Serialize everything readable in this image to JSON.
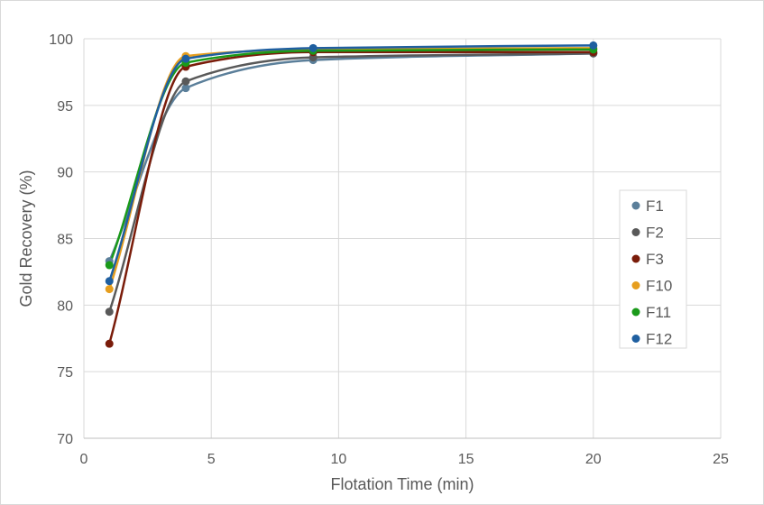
{
  "chart_data": {
    "type": "scatter",
    "title": "",
    "xlabel": "Flotation Time (min)",
    "ylabel": "Gold Recovery (%)",
    "xlim": [
      0,
      25
    ],
    "ylim": [
      70,
      100
    ],
    "xticks": [
      0,
      5,
      10,
      15,
      20,
      25
    ],
    "yticks": [
      70,
      75,
      80,
      85,
      90,
      95,
      100
    ],
    "grid": true,
    "smooth_lines": true,
    "markers": true,
    "legend_position": "right",
    "series": [
      {
        "name": "F1",
        "color": "#5b7f9a",
        "x": [
          1,
          4,
          9,
          20
        ],
        "y": [
          83.3,
          96.3,
          98.4,
          98.9
        ]
      },
      {
        "name": "F2",
        "color": "#595959",
        "x": [
          1,
          4,
          9,
          20
        ],
        "y": [
          79.5,
          96.8,
          98.6,
          98.9
        ]
      },
      {
        "name": "F3",
        "color": "#7a1c0a",
        "x": [
          1,
          4,
          9,
          20
        ],
        "y": [
          77.1,
          97.9,
          99.0,
          99.0
        ]
      },
      {
        "name": "F10",
        "color": "#e69e1e",
        "x": [
          1,
          4,
          9,
          20
        ],
        "y": [
          81.2,
          98.7,
          99.2,
          99.3
        ]
      },
      {
        "name": "F11",
        "color": "#1a9a1a",
        "x": [
          1,
          4,
          9,
          20
        ],
        "y": [
          83.0,
          98.2,
          99.1,
          99.2
        ]
      },
      {
        "name": "F12",
        "color": "#1f5fa0",
        "x": [
          1,
          4,
          9,
          20
        ],
        "y": [
          81.8,
          98.5,
          99.3,
          99.5
        ]
      }
    ]
  }
}
